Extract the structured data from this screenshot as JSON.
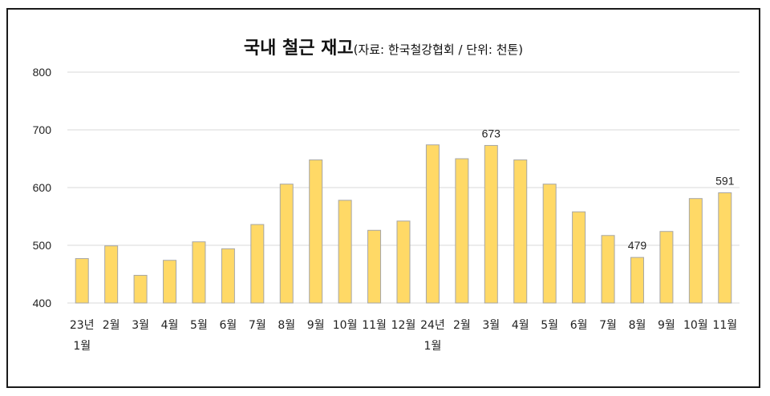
{
  "chart_data": {
    "type": "bar",
    "title": "국내 철근 재고",
    "subtitle": "(자료: 한국철강협회 / 단위: 천톤)",
    "categories": [
      [
        "23년",
        "1월"
      ],
      [
        "2월"
      ],
      [
        "3월"
      ],
      [
        "4월"
      ],
      [
        "5월"
      ],
      [
        "6월"
      ],
      [
        "7월"
      ],
      [
        "8월"
      ],
      [
        "9월"
      ],
      [
        "10월"
      ],
      [
        "11월"
      ],
      [
        "12월"
      ],
      [
        "24년",
        "1월"
      ],
      [
        "2월"
      ],
      [
        "3월"
      ],
      [
        "4월"
      ],
      [
        "5월"
      ],
      [
        "6월"
      ],
      [
        "7월"
      ],
      [
        "8월"
      ],
      [
        "9월"
      ],
      [
        "10월"
      ],
      [
        "11월"
      ]
    ],
    "values": [
      477,
      499,
      448,
      474,
      506,
      494,
      536,
      606,
      648,
      578,
      526,
      542,
      674,
      650,
      673,
      648,
      606,
      558,
      517,
      479,
      524,
      581,
      591
    ],
    "data_labels": [
      {
        "index": 14,
        "text": "673"
      },
      {
        "index": 19,
        "text": "479"
      },
      {
        "index": 22,
        "text": "591"
      }
    ],
    "ylim": [
      400,
      800
    ],
    "yticks": [
      "400",
      "500",
      "600",
      "700",
      "800"
    ],
    "grid": true,
    "colors": {
      "bar_fill": "#FFD966",
      "bar_stroke": "#A6A6A6",
      "grid": "#D9D9D9"
    }
  }
}
